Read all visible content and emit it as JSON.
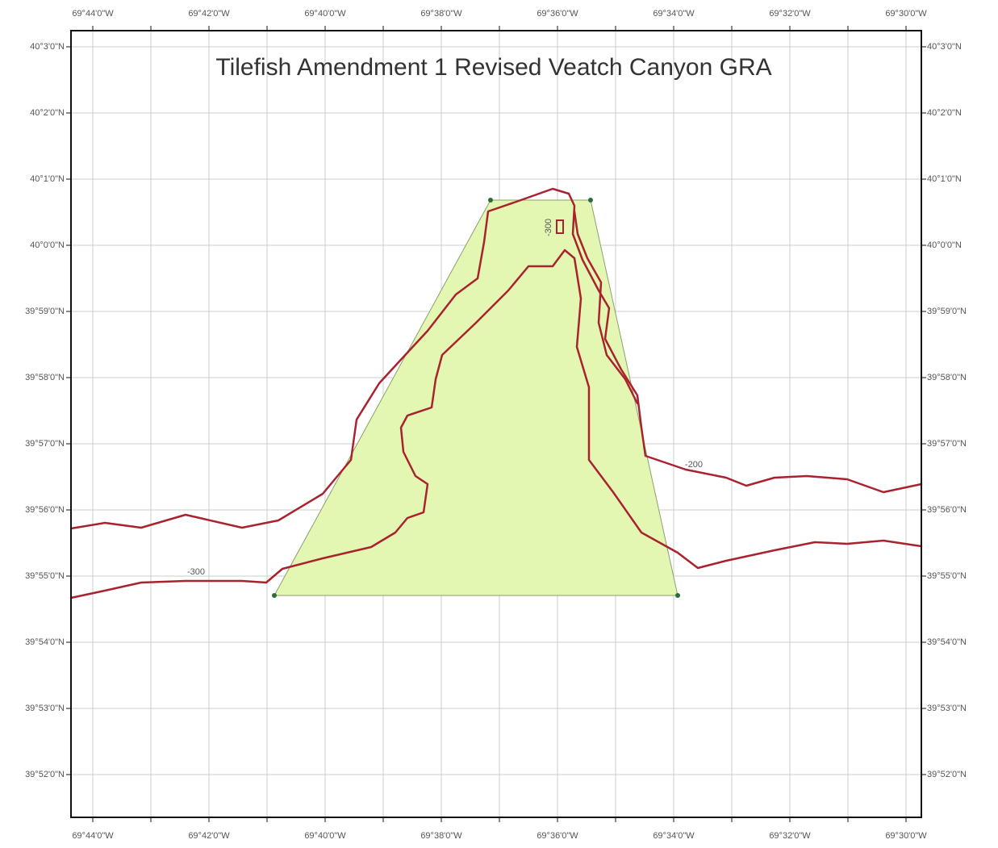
{
  "map": {
    "title": "Tilefish Amendment 1 Revised Veatch Canyon GRA",
    "top_labels": [
      "69°44'0\"W",
      "69°42'0\"W",
      "69°40'0\"W",
      "69°38'0\"W",
      "69°36'0\"W",
      "69°34'0\"W",
      "69°32'0\"W",
      "69°30'0\"W"
    ],
    "bottom_labels": [
      "69°44'0\"W",
      "69°42'0\"W",
      "69°40'0\"W",
      "69°38'0\"W",
      "69°36'0\"W",
      "69°34'0\"W",
      "69°32'0\"W",
      "69°30'0\"W"
    ],
    "left_labels": [
      "40°3'0\"N",
      "40°2'0\"N",
      "40°1'0\"N",
      "40°0'0\"N",
      "39°59'0\"N",
      "39°58'0\"N",
      "39°57'0\"N",
      "39°56'0\"N",
      "39°55'0\"N",
      "39°54'0\"N",
      "39°53'0\"N",
      "39°52'0\"N"
    ],
    "right_labels": [
      "40°3'0\"N",
      "40°2'0\"N",
      "40°1'0\"N",
      "40°0'0\"N",
      "39°59'0\"N",
      "39°58'0\"N",
      "39°57'0\"N",
      "39°56'0\"N",
      "39°55'0\"N",
      "39°54'0\"N",
      "39°53'0\"N",
      "39°52'0\"N"
    ],
    "contour_labels": [
      "-200",
      "-300",
      "-300"
    ]
  }
}
